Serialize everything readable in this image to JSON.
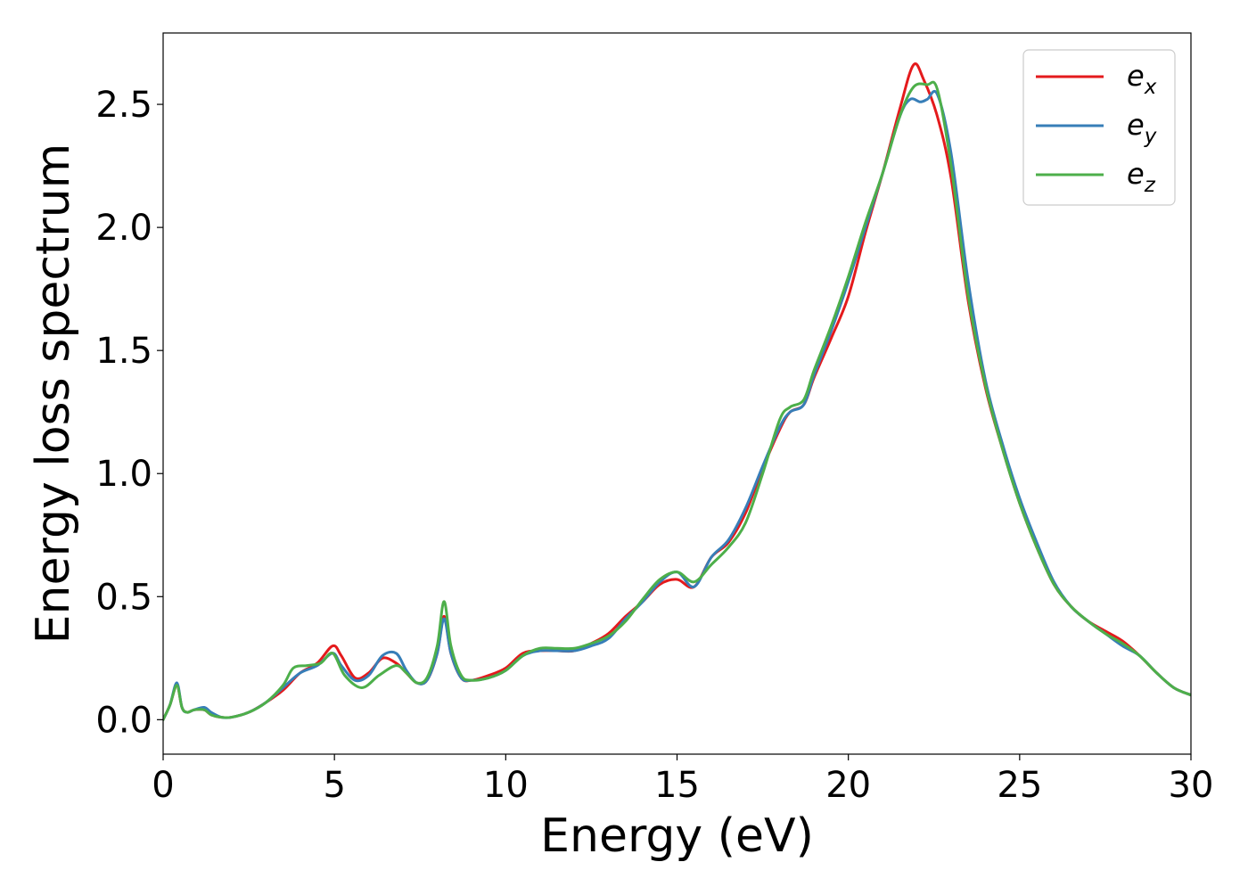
{
  "chart_data": {
    "type": "line",
    "title": "",
    "xlabel": "Energy (eV)",
    "ylabel": "Energy loss spectrum",
    "xlim": [
      0,
      30
    ],
    "ylim": [
      -0.14,
      2.79
    ],
    "xticks": [
      0,
      5,
      10,
      15,
      20,
      25,
      30
    ],
    "xtick_labels": [
      "0",
      "5",
      "10",
      "15",
      "20",
      "25",
      "30"
    ],
    "yticks": [
      0.0,
      0.5,
      1.0,
      1.5,
      2.0,
      2.5
    ],
    "ytick_labels": [
      "0.0",
      "0.5",
      "1.0",
      "1.5",
      "2.0",
      "2.5"
    ],
    "grid": false,
    "legend_position": "top-right",
    "series": [
      {
        "name": "e_x",
        "legend_base": "e",
        "legend_sub": "x",
        "color": "#e41a1c",
        "x": [
          0,
          0.2,
          0.4,
          0.55,
          0.7,
          0.9,
          1.2,
          1.4,
          1.7,
          2,
          2.5,
          3,
          3.5,
          4,
          4.5,
          4.95,
          5.2,
          5.6,
          6,
          6.4,
          6.8,
          7.1,
          7.4,
          7.7,
          8,
          8.2,
          8.4,
          8.7,
          9,
          9.5,
          10,
          10.5,
          11,
          11.5,
          12,
          12.5,
          13,
          13.5,
          14,
          14.5,
          15,
          15.5,
          16,
          16.5,
          17,
          17.5,
          18,
          18.3,
          18.7,
          19,
          19.5,
          20,
          20.5,
          21,
          21.5,
          21.9,
          22.2,
          22.6,
          23,
          23.5,
          24,
          24.5,
          25,
          25.5,
          26,
          26.5,
          27,
          27.5,
          28,
          28.5,
          29,
          29.5,
          30
        ],
        "values": [
          0.0,
          0.06,
          0.14,
          0.05,
          0.03,
          0.04,
          0.04,
          0.02,
          0.01,
          0.01,
          0.03,
          0.07,
          0.12,
          0.19,
          0.23,
          0.3,
          0.26,
          0.17,
          0.19,
          0.25,
          0.23,
          0.19,
          0.15,
          0.16,
          0.27,
          0.42,
          0.27,
          0.17,
          0.16,
          0.18,
          0.21,
          0.27,
          0.28,
          0.28,
          0.28,
          0.31,
          0.35,
          0.42,
          0.48,
          0.55,
          0.57,
          0.54,
          0.66,
          0.72,
          0.84,
          1.02,
          1.18,
          1.25,
          1.28,
          1.39,
          1.55,
          1.72,
          1.98,
          2.22,
          2.48,
          2.66,
          2.6,
          2.45,
          2.2,
          1.7,
          1.35,
          1.1,
          0.88,
          0.7,
          0.55,
          0.46,
          0.4,
          0.36,
          0.32,
          0.26,
          0.19,
          0.13,
          0.1
        ]
      },
      {
        "name": "e_y",
        "legend_base": "e",
        "legend_sub": "y",
        "color": "#377eb8",
        "x": [
          0,
          0.2,
          0.4,
          0.55,
          0.7,
          0.9,
          1.2,
          1.4,
          1.7,
          2,
          2.5,
          3,
          3.5,
          4,
          4.5,
          4.95,
          5.2,
          5.6,
          6,
          6.4,
          6.8,
          7.1,
          7.4,
          7.7,
          8,
          8.2,
          8.4,
          8.7,
          9,
          9.5,
          10,
          10.5,
          11,
          11.5,
          12,
          12.5,
          13,
          13.5,
          14,
          14.5,
          15,
          15.5,
          16,
          16.5,
          17,
          17.5,
          18,
          18.3,
          18.7,
          19,
          19.5,
          20,
          20.5,
          21,
          21.5,
          21.8,
          22.1,
          22.3,
          22.6,
          23,
          23.5,
          24,
          24.5,
          25,
          25.5,
          26,
          26.5,
          27,
          27.5,
          28,
          28.5,
          29,
          29.5,
          30
        ],
        "values": [
          0.0,
          0.06,
          0.15,
          0.05,
          0.03,
          0.04,
          0.05,
          0.03,
          0.01,
          0.01,
          0.03,
          0.07,
          0.13,
          0.19,
          0.22,
          0.27,
          0.22,
          0.16,
          0.18,
          0.26,
          0.27,
          0.2,
          0.15,
          0.16,
          0.27,
          0.41,
          0.27,
          0.17,
          0.16,
          0.17,
          0.2,
          0.26,
          0.28,
          0.28,
          0.28,
          0.3,
          0.33,
          0.41,
          0.48,
          0.56,
          0.6,
          0.54,
          0.66,
          0.73,
          0.86,
          1.03,
          1.19,
          1.25,
          1.28,
          1.4,
          1.58,
          1.78,
          2.0,
          2.22,
          2.45,
          2.52,
          2.51,
          2.52,
          2.54,
          2.3,
          1.78,
          1.38,
          1.12,
          0.9,
          0.72,
          0.56,
          0.46,
          0.4,
          0.35,
          0.3,
          0.26,
          0.19,
          0.13,
          0.1
        ]
      },
      {
        "name": "e_z",
        "legend_base": "e",
        "legend_sub": "z",
        "color": "#4daf4a",
        "x": [
          0,
          0.2,
          0.4,
          0.55,
          0.7,
          0.9,
          1.2,
          1.4,
          1.7,
          2,
          2.5,
          3,
          3.5,
          3.8,
          4.2,
          4.6,
          4.95,
          5.3,
          5.8,
          6.3,
          6.8,
          7.1,
          7.4,
          7.7,
          8,
          8.2,
          8.4,
          8.7,
          9,
          9.5,
          10,
          10.5,
          11,
          11.5,
          12,
          12.5,
          13,
          13.5,
          14,
          14.5,
          15,
          15.5,
          16,
          16.5,
          17,
          17.5,
          18,
          18.3,
          18.7,
          19,
          19.5,
          20,
          20.5,
          21,
          21.5,
          21.9,
          22.3,
          22.6,
          23,
          23.5,
          24,
          24.5,
          25,
          25.5,
          26,
          26.5,
          27,
          27.5,
          28,
          28.5,
          29,
          29.5,
          30
        ],
        "values": [
          0.0,
          0.06,
          0.14,
          0.05,
          0.03,
          0.04,
          0.04,
          0.02,
          0.01,
          0.01,
          0.03,
          0.07,
          0.14,
          0.21,
          0.22,
          0.23,
          0.27,
          0.18,
          0.13,
          0.18,
          0.22,
          0.19,
          0.15,
          0.17,
          0.3,
          0.48,
          0.3,
          0.18,
          0.16,
          0.17,
          0.2,
          0.26,
          0.29,
          0.29,
          0.29,
          0.31,
          0.34,
          0.4,
          0.49,
          0.57,
          0.6,
          0.56,
          0.63,
          0.7,
          0.8,
          1.0,
          1.22,
          1.27,
          1.3,
          1.42,
          1.6,
          1.8,
          2.02,
          2.22,
          2.45,
          2.57,
          2.58,
          2.56,
          2.25,
          1.72,
          1.36,
          1.1,
          0.88,
          0.7,
          0.55,
          0.46,
          0.4,
          0.35,
          0.31,
          0.26,
          0.19,
          0.13,
          0.1
        ]
      }
    ]
  }
}
